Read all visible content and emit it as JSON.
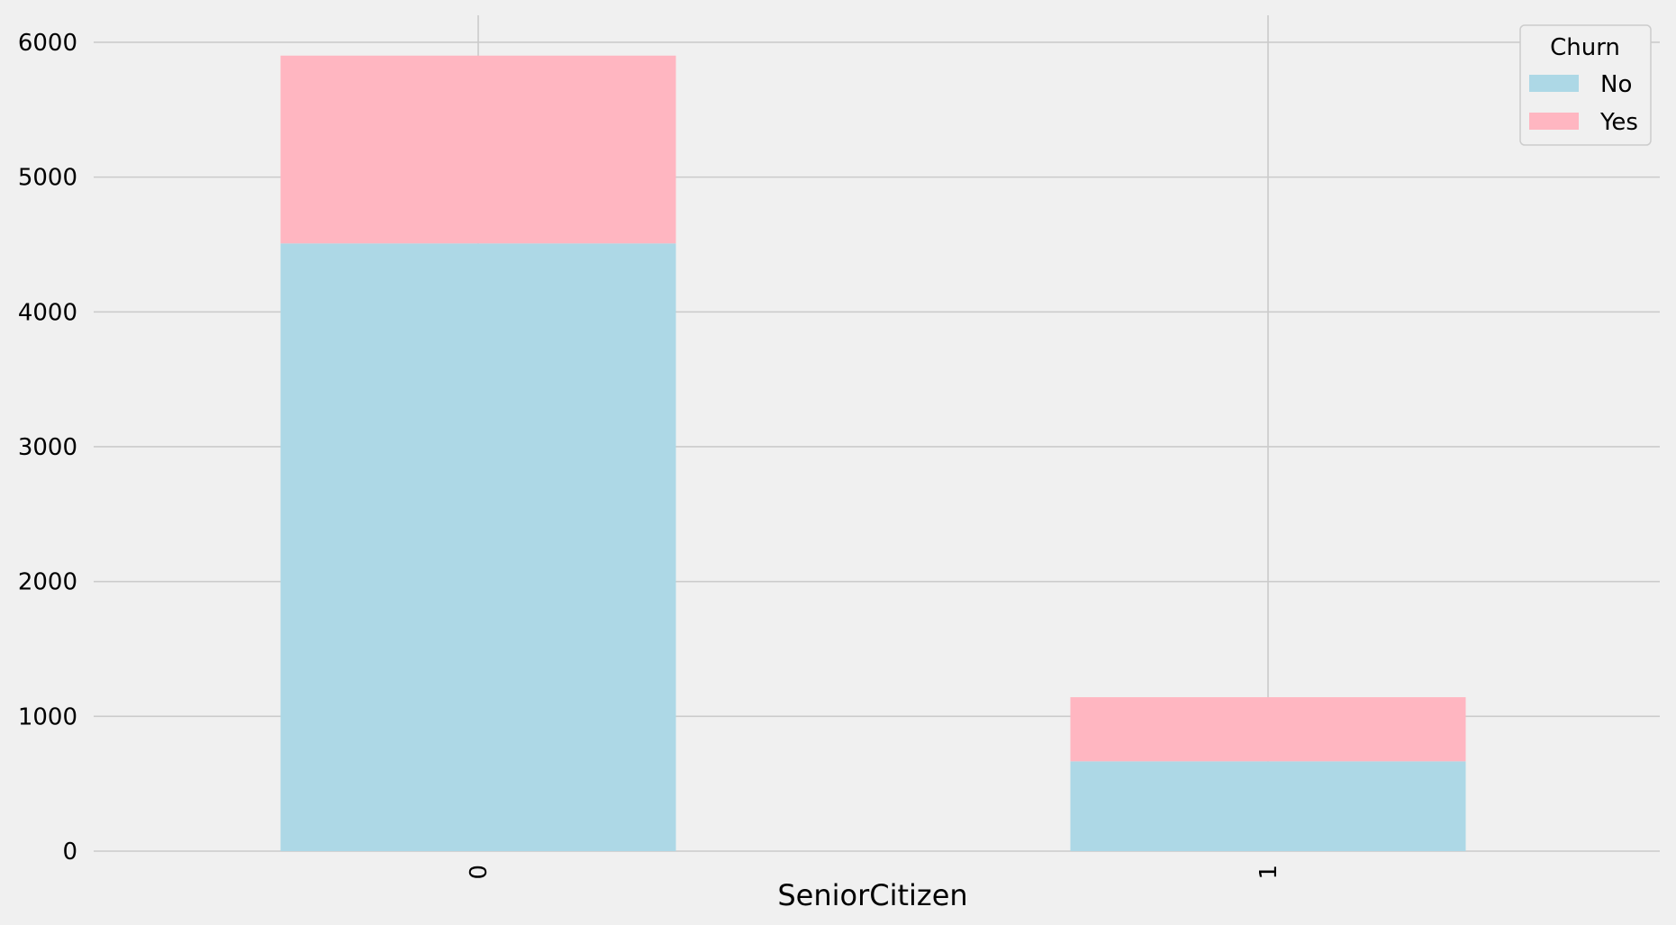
{
  "chart_data": {
    "type": "bar",
    "stacked": true,
    "categories": [
      "0",
      "1"
    ],
    "series": [
      {
        "name": "No",
        "values": [
          4508,
          666
        ],
        "color": "#add8e6"
      },
      {
        "name": "Yes",
        "values": [
          1393,
          476
        ],
        "color": "#ffb6c1"
      }
    ],
    "title": "",
    "xlabel": "SeniorCitizen",
    "ylabel": "",
    "ylim": [
      0,
      6200
    ],
    "yticks": [
      0,
      1000,
      2000,
      3000,
      4000,
      5000,
      6000
    ],
    "grid": true,
    "legend": {
      "title": "Churn",
      "placement": "top-right"
    },
    "background": "#f0f0f0",
    "grid_color": "#cbcbcb"
  }
}
